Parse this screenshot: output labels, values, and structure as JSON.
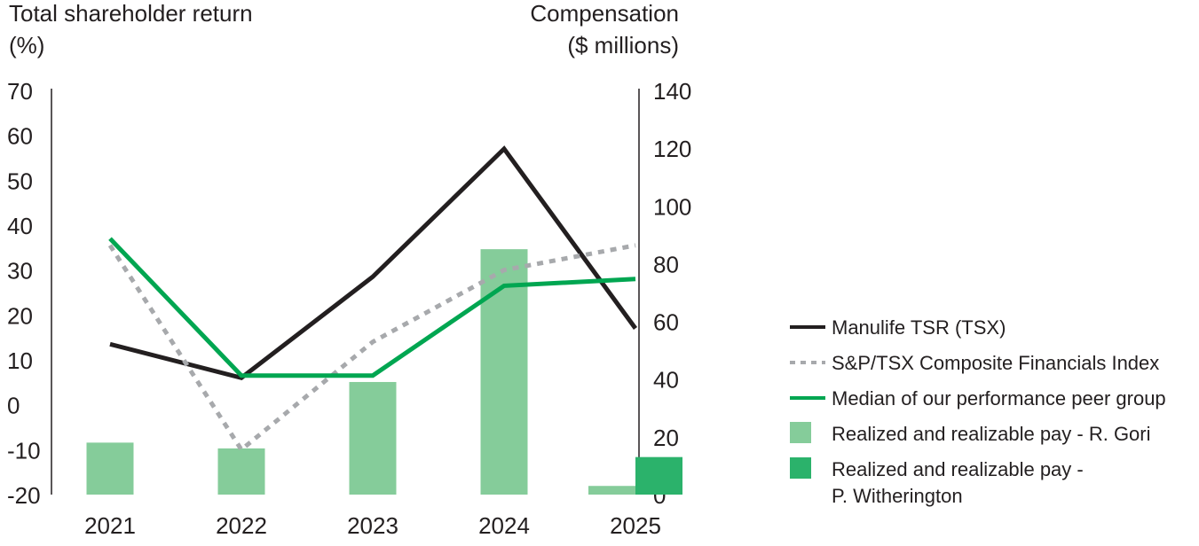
{
  "chart_data": {
    "type": "bar+line",
    "categories": [
      "2021",
      "2022",
      "2023",
      "2024",
      "2025"
    ],
    "left_axis": {
      "title_line1": "Total shareholder return",
      "title_line2": "(%)",
      "ylim": [
        -20,
        70
      ],
      "ticks": [
        "70",
        "60",
        "50",
        "40",
        "30",
        "20",
        "10",
        "0",
        "-10",
        "-20"
      ],
      "tick_values": [
        70,
        60,
        50,
        40,
        30,
        20,
        10,
        0,
        -10,
        -20
      ]
    },
    "right_axis": {
      "title_line1": "Compensation",
      "title_line2": "($ millions)",
      "ylim": [
        0,
        140
      ],
      "ticks": [
        "140",
        "120",
        "100",
        "80",
        "60",
        "40",
        "20",
        "0"
      ],
      "tick_values": [
        140,
        120,
        100,
        80,
        60,
        40,
        20,
        0
      ]
    },
    "series_bars": [
      {
        "name": "Realized and realizable pay - R. Gori",
        "color": "#85cc9a",
        "values": [
          18,
          16,
          39,
          85,
          3
        ]
      },
      {
        "name": "Realized and realizable pay - P. Witherington",
        "color": "#2bb26b",
        "values": [
          null,
          null,
          null,
          null,
          13
        ]
      }
    ],
    "series_lines": [
      {
        "name": "Manulife TSR (TSX)",
        "color": "#231f20",
        "style": "solid",
        "values": [
          13.5,
          6,
          28.5,
          57,
          17
        ]
      },
      {
        "name": "S&P/TSX Composite Financials Index",
        "color": "#a7a9ac",
        "style": "dotted",
        "values": [
          35.5,
          -10,
          14,
          30,
          35.5
        ]
      },
      {
        "name": "Median of our performance peer group",
        "color": "#00a651",
        "style": "solid",
        "values": [
          37,
          6.5,
          6.5,
          26.5,
          28
        ]
      }
    ],
    "legend": {
      "position": "right",
      "items": [
        {
          "label": "Manulife TSR (TSX)",
          "kind": "line-solid",
          "color": "#231f20"
        },
        {
          "label": "S&P/TSX Composite Financials Index",
          "kind": "line-dotted",
          "color": "#a7a9ac"
        },
        {
          "label": "Median of our performance peer group",
          "kind": "line-solid",
          "color": "#00a651"
        },
        {
          "label": "Realized and realizable pay - R. Gori",
          "kind": "box",
          "color": "#85cc9a"
        },
        {
          "label_line1": "Realized and realizable pay -",
          "label_line2": "P. Witherington",
          "kind": "box",
          "color": "#2bb26b"
        }
      ]
    }
  }
}
